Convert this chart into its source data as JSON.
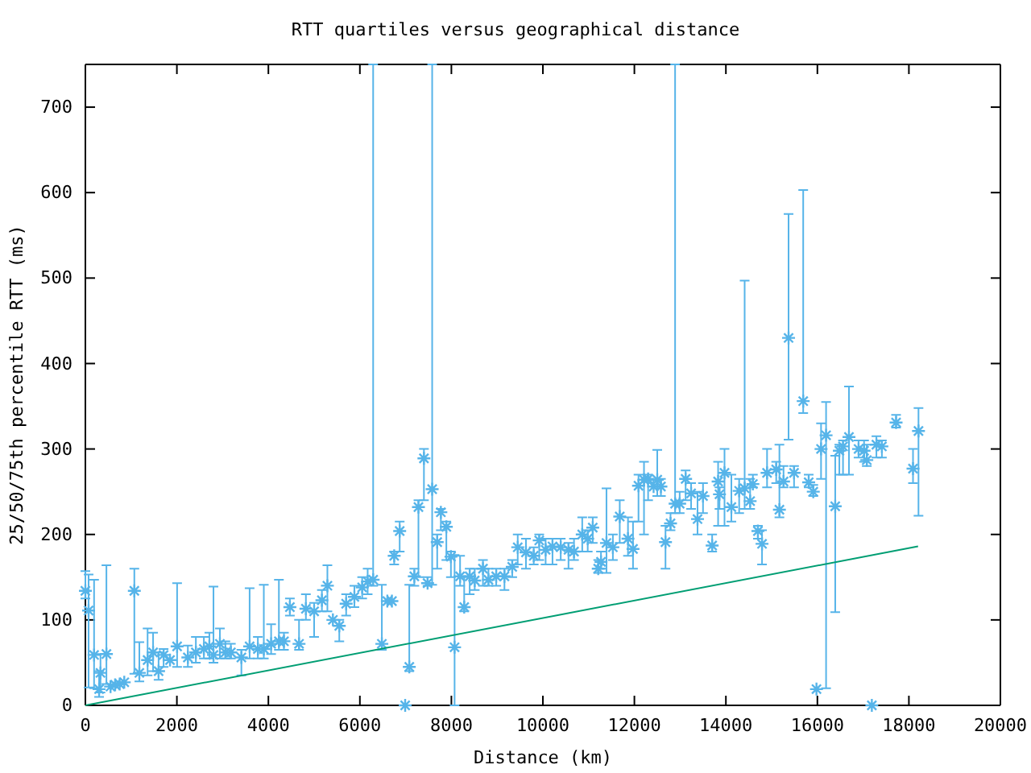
{
  "chart_data": {
    "type": "scatter",
    "title": "RTT quartiles versus geographical distance",
    "xlabel": "Distance (km)",
    "ylabel": "25/50/75th percentile RTT (ms)",
    "xlim": [
      0,
      20000
    ],
    "xticks": [
      0,
      2000,
      4000,
      6000,
      8000,
      10000,
      12000,
      14000,
      16000,
      18000,
      20000
    ],
    "ylim": [
      0,
      750
    ],
    "yticks": [
      0,
      100,
      200,
      300,
      400,
      500,
      600,
      700
    ],
    "grid": false,
    "series": [
      {
        "color": "#56b4e9",
        "marker": "cross",
        "x": [
          0,
          70,
          190,
          300,
          330,
          460,
          550,
          650,
          750,
          850,
          1070,
          1180,
          1360,
          1480,
          1600,
          1710,
          1850,
          2005,
          2240,
          2415,
          2590,
          2710,
          2800,
          2940,
          3060,
          3180,
          3410,
          3590,
          3770,
          3900,
          4060,
          4230,
          4340,
          4470,
          4670,
          4820,
          5000,
          5170,
          5290,
          5410,
          5550,
          5700,
          5880,
          6050,
          6170,
          6290,
          6480,
          6600,
          6700,
          6750,
          6870,
          6990,
          7080,
          7190,
          7280,
          7400,
          7480,
          7580,
          7690,
          7770,
          7890,
          7990,
          8070,
          8190,
          8280,
          8400,
          8510,
          8690,
          8810,
          8980,
          9160,
          9330,
          9450,
          9630,
          9800,
          9920,
          10060,
          10210,
          10390,
          10560,
          10680,
          10860,
          10980,
          11090,
          11210,
          11270,
          11390,
          11530,
          11680,
          11860,
          11970,
          12090,
          12210,
          12300,
          12420,
          12500,
          12580,
          12680,
          12790,
          12890,
          12990,
          13120,
          13240,
          13380,
          13500,
          13700,
          13830,
          13860,
          13970,
          14120,
          14290,
          14410,
          14530,
          14590,
          14700,
          14790,
          14900,
          15100,
          15170,
          15260,
          15370,
          15490,
          15690,
          15810,
          15910,
          15980,
          16080,
          16190,
          16390,
          16480,
          16560,
          16690,
          16900,
          17020,
          17080,
          17190,
          17290,
          17410,
          17720,
          18090,
          18210
        ],
        "values": [
          134,
          111,
          59,
          19,
          38,
          60,
          22,
          24,
          25,
          27,
          134,
          38,
          53,
          62,
          40,
          59,
          53,
          69,
          56,
          62,
          66,
          69,
          59,
          72,
          62,
          62,
          56,
          69,
          66,
          66,
          72,
          75,
          75,
          115,
          72,
          113,
          110,
          123,
          140,
          100,
          93,
          119,
          127,
          138,
          145,
          147,
          72,
          122,
          122,
          175,
          204,
          0,
          45,
          151,
          232,
          289,
          143,
          253,
          191,
          226,
          209,
          174,
          68,
          151,
          115,
          151,
          146,
          160,
          147,
          151,
          151,
          162,
          185,
          179,
          175,
          193,
          182,
          186,
          185,
          182,
          180,
          200,
          195,
          208,
          160,
          168,
          190,
          185,
          221,
          195,
          183,
          257,
          264,
          265,
          256,
          264,
          256,
          191,
          213,
          236,
          236,
          265,
          248,
          218,
          245,
          187,
          262,
          247,
          272,
          232,
          251,
          254,
          239,
          259,
          204,
          189,
          272,
          276,
          229,
          262,
          430,
          272,
          356,
          261,
          250,
          19,
          300,
          316,
          233,
          298,
          303,
          314,
          300,
          298,
          287,
          0,
          305,
          303,
          331,
          277,
          321
        ],
        "errors": [
          [
            125,
            157
          ],
          [
            21,
            153
          ],
          [
            20,
            147
          ],
          [
            10,
            40
          ],
          [
            15,
            60
          ],
          [
            25,
            164
          ],
          null,
          null,
          null,
          null,
          [
            37,
            160
          ],
          [
            28,
            74
          ],
          [
            35,
            90
          ],
          [
            40,
            85
          ],
          [
            30,
            62
          ],
          [
            45,
            66
          ],
          null,
          [
            45,
            143
          ],
          [
            45,
            70
          ],
          [
            50,
            80
          ],
          [
            55,
            80
          ],
          [
            55,
            85
          ],
          [
            50,
            139
          ],
          [
            55,
            90
          ],
          [
            55,
            75
          ],
          [
            55,
            72
          ],
          [
            35,
            65
          ],
          [
            55,
            137
          ],
          [
            55,
            80
          ],
          [
            55,
            141
          ],
          [
            60,
            95
          ],
          [
            65,
            147
          ],
          [
            65,
            85
          ],
          [
            105,
            125
          ],
          [
            65,
            100
          ],
          [
            100,
            130
          ],
          [
            80,
            120
          ],
          [
            110,
            135
          ],
          [
            110,
            164
          ],
          null,
          [
            75,
            100
          ],
          [
            105,
            130
          ],
          [
            115,
            140
          ],
          [
            125,
            150
          ],
          [
            130,
            160
          ],
          [
            140,
            750
          ],
          [
            65,
            141
          ],
          null,
          null,
          [
            165,
            180
          ],
          [
            180,
            215
          ],
          null,
          [
            40,
            141
          ],
          [
            140,
            160
          ],
          [
            150,
            240
          ],
          [
            240,
            300
          ],
          [
            140,
            150
          ],
          [
            141,
            750
          ],
          [
            160,
            200
          ],
          [
            205,
            230
          ],
          [
            170,
            215
          ],
          [
            150,
            180
          ],
          [
            0,
            176
          ],
          [
            140,
            175
          ],
          [
            110,
            150
          ],
          [
            130,
            160
          ],
          [
            135,
            160
          ],
          [
            140,
            170
          ],
          [
            140,
            160
          ],
          [
            140,
            160
          ],
          [
            135,
            160
          ],
          [
            150,
            170
          ],
          [
            165,
            200
          ],
          [
            160,
            195
          ],
          [
            165,
            185
          ],
          [
            170,
            200
          ],
          [
            165,
            195
          ],
          [
            165,
            195
          ],
          [
            170,
            195
          ],
          [
            160,
            190
          ],
          [
            170,
            195
          ],
          [
            180,
            220
          ],
          [
            180,
            205
          ],
          [
            190,
            220
          ],
          [
            155,
            170
          ],
          [
            160,
            180
          ],
          [
            155,
            254
          ],
          [
            170,
            200
          ],
          [
            190,
            240
          ],
          [
            175,
            220
          ],
          [
            160,
            215
          ],
          [
            215,
            270
          ],
          [
            200,
            285
          ],
          [
            240,
            270
          ],
          null,
          [
            245,
            299
          ],
          [
            245,
            265
          ],
          [
            160,
            210
          ],
          [
            205,
            225
          ],
          [
            225,
            750
          ],
          [
            225,
            250
          ],
          [
            240,
            275
          ],
          [
            230,
            260
          ],
          [
            200,
            250
          ],
          [
            225,
            260
          ],
          [
            180,
            200
          ],
          [
            210,
            285
          ],
          [
            230,
            255
          ],
          [
            210,
            300
          ],
          [
            215,
            270
          ],
          [
            225,
            265
          ],
          [
            230,
            497
          ],
          [
            230,
            265
          ],
          [
            255,
            270
          ],
          [
            195,
            210
          ],
          [
            165,
            205
          ],
          [
            255,
            300
          ],
          [
            260,
            285
          ],
          [
            220,
            305
          ],
          [
            255,
            280
          ],
          [
            311,
            575
          ],
          [
            255,
            280
          ],
          [
            342,
            603
          ],
          [
            255,
            270
          ],
          [
            245,
            258
          ],
          null,
          [
            265,
            330
          ],
          [
            20,
            355
          ],
          [
            109,
            292
          ],
          [
            270,
            305
          ],
          [
            270,
            310
          ],
          [
            270,
            373
          ],
          [
            290,
            310
          ],
          [
            285,
            310
          ],
          [
            280,
            305
          ],
          null,
          [
            290,
            315
          ],
          [
            290,
            310
          ],
          [
            325,
            340
          ],
          [
            260,
            300
          ],
          [
            222,
            348
          ]
        ]
      },
      {
        "type": "line",
        "color": "#009e73",
        "x": [
          0,
          18200
        ],
        "values": [
          0,
          186
        ]
      }
    ]
  }
}
